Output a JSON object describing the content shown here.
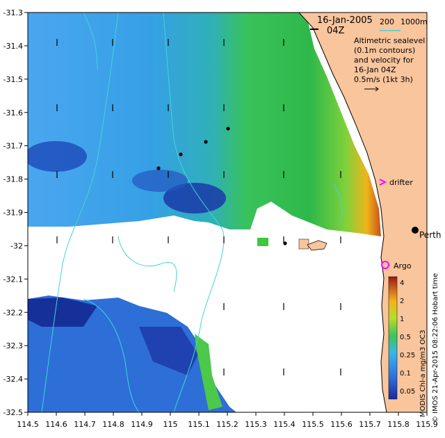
{
  "map": {
    "date_label": "16-Jan-2005",
    "time_label": "04Z",
    "bathy_scale_label": "200",
    "bathy_scale_label2": "1000m",
    "altimetry_note_lines": [
      "Altimetric sealevel",
      "(0.1m contours)",
      "and velocity for",
      "16-Jan 04Z",
      "0.5m/s (1kt 3h)"
    ],
    "drifter_label": "drifter",
    "argo_label": "Argo",
    "city_label": "Perth",
    "side_title": "MODIS Chl-a mg/m3 OC3",
    "credit": "© IMOS 21-Apr-2015 08:22:06 Hobart time",
    "colorbar_ticks": [
      "4",
      "2",
      "1",
      "0.5",
      "0.25",
      "0.1",
      "0.05"
    ],
    "x_ticks": [
      "114.5",
      "114.6",
      "114.7",
      "114.8",
      "114.9",
      "115",
      "115.1",
      "115.2",
      "115.3",
      "115.4",
      "115.5",
      "115.6",
      "115.7",
      "115.8",
      "115.9"
    ],
    "y_ticks": [
      "-31.3",
      "-31.4",
      "-31.5",
      "-31.6",
      "-31.7",
      "-31.8",
      "-31.9",
      "-32",
      "-32.1",
      "-32.2",
      "-32.3",
      "-32.4",
      "-32.5"
    ],
    "colors": {
      "land": "#f9c59c",
      "ocean_blue": "#3c9be8",
      "deep_blue": "#1a3fae",
      "chl_green": "#2ec44a",
      "coastal_red": "#c0301c",
      "contour": "#44d2dc",
      "drifter": "#ff00ff"
    }
  }
}
